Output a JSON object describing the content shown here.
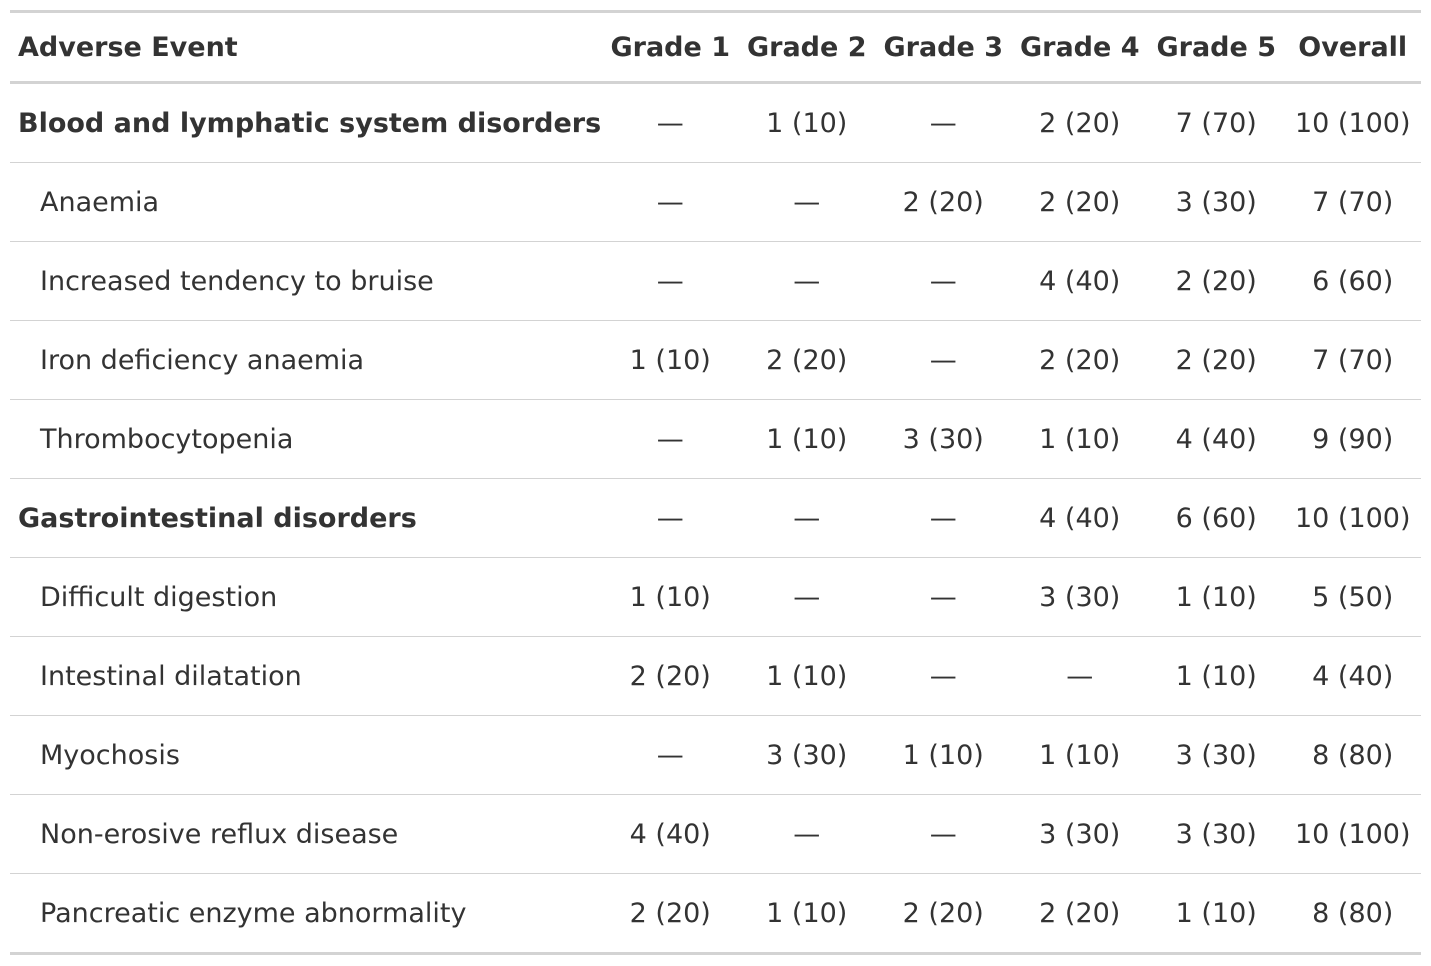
{
  "table": {
    "header": [
      "Adverse Event",
      "Grade 1",
      "Grade 2",
      "Grade 3",
      "Grade 4",
      "Grade 5",
      "Overall"
    ],
    "groups": [
      {
        "cells": [
          "Blood and lymphatic system disorders",
          "—",
          "1 (10)",
          "—",
          "2 (20)",
          "7 (70)",
          "10 (100)"
        ],
        "rows": [
          [
            "Anaemia",
            "—",
            "—",
            "2 (20)",
            "2 (20)",
            "3 (30)",
            "7 (70)"
          ],
          [
            "Increased tendency to bruise",
            "—",
            "—",
            "—",
            "4 (40)",
            "2 (20)",
            "6 (60)"
          ],
          [
            "Iron deficiency anaemia",
            "1 (10)",
            "2 (20)",
            "—",
            "2 (20)",
            "2 (20)",
            "7 (70)"
          ],
          [
            "Thrombocytopenia",
            "—",
            "1 (10)",
            "3 (30)",
            "1 (10)",
            "4 (40)",
            "9 (90)"
          ]
        ]
      },
      {
        "cells": [
          "Gastrointestinal disorders",
          "—",
          "—",
          "—",
          "4 (40)",
          "6 (60)",
          "10 (100)"
        ],
        "rows": [
          [
            "Difficult digestion",
            "1 (10)",
            "—",
            "—",
            "3 (30)",
            "1 (10)",
            "5 (50)"
          ],
          [
            "Intestinal dilatation",
            "2 (20)",
            "1 (10)",
            "—",
            "—",
            "1 (10)",
            "4 (40)"
          ],
          [
            "Myochosis",
            "—",
            "3 (30)",
            "1 (10)",
            "1 (10)",
            "3 (30)",
            "8 (80)"
          ],
          [
            "Non-erosive reflux disease",
            "4 (40)",
            "—",
            "—",
            "3 (30)",
            "3 (30)",
            "10 (100)"
          ],
          [
            "Pancreatic enzyme abnormality",
            "2 (20)",
            "1 (10)",
            "2 (20)",
            "2 (20)",
            "1 (10)",
            "8 (80)"
          ]
        ]
      }
    ]
  }
}
